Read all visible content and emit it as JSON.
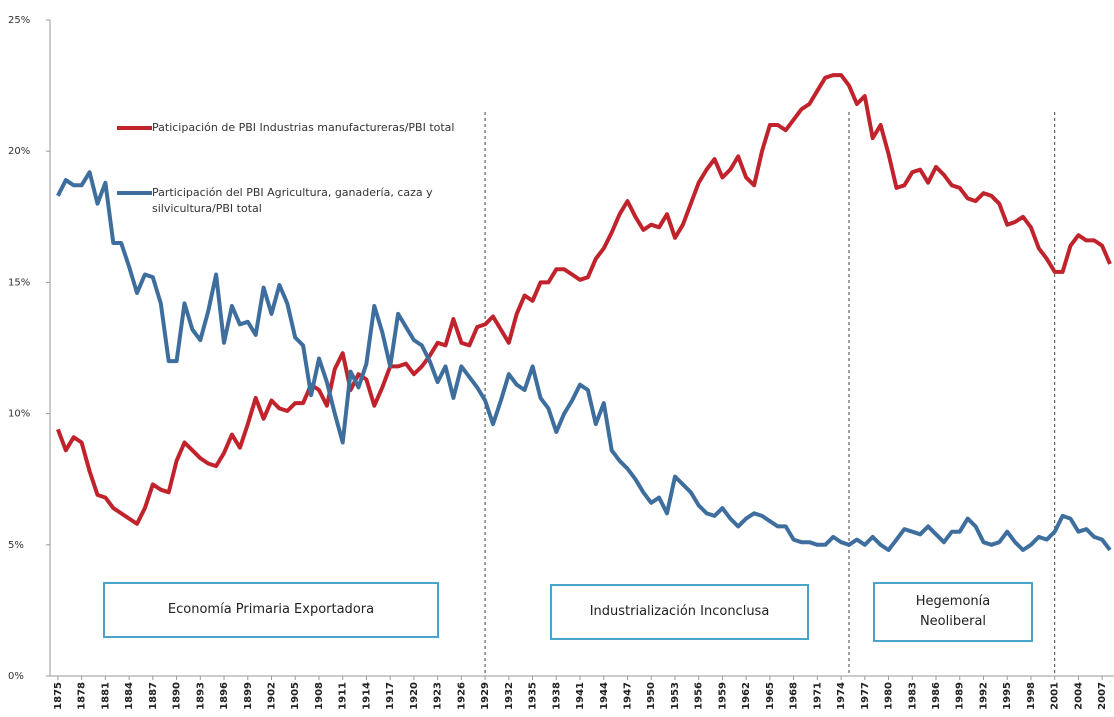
{
  "chart_data": {
    "type": "line",
    "annotations": [
      "Economía Primaria Exportadora",
      "Industrialización Inconclusa",
      "Hegemonía Neoliberal"
    ],
    "vlines": [
      1929,
      1975,
      2001
    ],
    "xlim": [
      1874,
      2008.5
    ],
    "ylim": [
      0,
      25
    ],
    "yticks": [
      {
        "value": 0,
        "label": "0%"
      },
      {
        "value": 5,
        "label": "5%"
      },
      {
        "value": 10,
        "label": "10%"
      },
      {
        "value": 15,
        "label": "15%"
      },
      {
        "value": 20,
        "label": "20%"
      },
      {
        "value": 25,
        "label": "25%"
      }
    ],
    "xticks": [
      1875,
      1878,
      1881,
      1884,
      1887,
      1890,
      1893,
      1896,
      1899,
      1902,
      1905,
      1908,
      1911,
      1914,
      1917,
      1920,
      1923,
      1926,
      1929,
      1932,
      1935,
      1938,
      1941,
      1944,
      1947,
      1950,
      1953,
      1956,
      1959,
      1962,
      1965,
      1968,
      1971,
      1974,
      1977,
      1980,
      1983,
      1986,
      1989,
      1992,
      1995,
      1998,
      2001,
      2004,
      2007
    ],
    "x": [
      1875,
      1876,
      1877,
      1878,
      1879,
      1880,
      1881,
      1882,
      1883,
      1884,
      1885,
      1886,
      1887,
      1888,
      1889,
      1890,
      1891,
      1892,
      1893,
      1894,
      1895,
      1896,
      1897,
      1898,
      1899,
      1900,
      1901,
      1902,
      1903,
      1904,
      1905,
      1906,
      1907,
      1908,
      1909,
      1910,
      1911,
      1912,
      1913,
      1914,
      1915,
      1916,
      1917,
      1918,
      1919,
      1920,
      1921,
      1922,
      1923,
      1924,
      1925,
      1926,
      1927,
      1928,
      1929,
      1930,
      1931,
      1932,
      1933,
      1934,
      1935,
      1936,
      1937,
      1938,
      1939,
      1940,
      1941,
      1942,
      1943,
      1944,
      1945,
      1946,
      1947,
      1948,
      1949,
      1950,
      1951,
      1952,
      1953,
      1954,
      1955,
      1956,
      1957,
      1958,
      1959,
      1960,
      1961,
      1962,
      1963,
      1964,
      1965,
      1966,
      1967,
      1968,
      1969,
      1970,
      1971,
      1972,
      1973,
      1974,
      1975,
      1976,
      1977,
      1978,
      1979,
      1980,
      1981,
      1982,
      1983,
      1984,
      1985,
      1986,
      1987,
      1988,
      1989,
      1990,
      1991,
      1992,
      1993,
      1994,
      1995,
      1996,
      1997,
      1998,
      1999,
      2000,
      2001,
      2002,
      2003,
      2004,
      2005,
      2006,
      2007,
      2008
    ],
    "series": [
      {
        "name": "Paticipación de PBI Industrias manufactureras/PBI total",
        "color": "#c0232b",
        "values": [
          9.4,
          8.6,
          9.1,
          8.9,
          7.8,
          6.9,
          6.8,
          6.4,
          6.2,
          6.0,
          5.8,
          6.4,
          7.3,
          7.1,
          7.0,
          8.2,
          8.9,
          8.6,
          8.3,
          8.1,
          8.0,
          8.5,
          9.2,
          8.7,
          9.6,
          10.6,
          9.8,
          10.5,
          10.2,
          10.1,
          10.4,
          10.4,
          11.1,
          10.9,
          10.3,
          11.7,
          12.3,
          10.9,
          11.5,
          11.3,
          10.3,
          11.0,
          11.8,
          11.8,
          11.9,
          11.5,
          11.8,
          12.2,
          12.7,
          12.6,
          13.6,
          12.7,
          12.6,
          13.3,
          13.4,
          13.7,
          13.2,
          12.7,
          13.8,
          14.5,
          14.3,
          15.0,
          15.0,
          15.5,
          15.5,
          15.3,
          15.1,
          15.2,
          15.9,
          16.3,
          16.9,
          17.6,
          18.1,
          17.5,
          17.0,
          17.2,
          17.1,
          17.6,
          16.7,
          17.2,
          18.0,
          18.8,
          19.3,
          19.7,
          19.0,
          19.3,
          19.8,
          19.0,
          18.7,
          20.0,
          21.0,
          21.0,
          20.8,
          21.2,
          21.6,
          21.8,
          22.3,
          22.8,
          22.9,
          22.9,
          22.5,
          21.8,
          22.1,
          20.5,
          21.0,
          19.9,
          18.6,
          18.7,
          19.2,
          19.3,
          18.8,
          19.4,
          19.1,
          18.7,
          18.6,
          18.2,
          18.1,
          18.4,
          18.3,
          18.0,
          17.2,
          17.3,
          17.5,
          17.1,
          16.3,
          15.9,
          15.4,
          15.4,
          16.4,
          16.8,
          16.6,
          16.6,
          16.4,
          15.7
        ]
      },
      {
        "name": "Participación del PBI Agricultura, ganadería, caza y silvicultura/PBI total",
        "color": "#3e6e9e",
        "values": [
          18.3,
          18.9,
          18.7,
          18.7,
          19.2,
          18.0,
          18.8,
          16.5,
          16.5,
          15.6,
          14.6,
          15.3,
          15.2,
          14.2,
          12.0,
          12.0,
          14.2,
          13.2,
          12.8,
          13.9,
          15.3,
          12.7,
          14.1,
          13.4,
          13.5,
          13.0,
          14.8,
          13.8,
          14.9,
          14.2,
          12.9,
          12.6,
          10.7,
          12.1,
          11.2,
          10.0,
          8.9,
          11.6,
          11.0,
          11.9,
          14.1,
          13.1,
          11.8,
          13.8,
          13.3,
          12.8,
          12.6,
          12.0,
          11.2,
          11.8,
          10.6,
          11.8,
          11.4,
          11.0,
          10.5,
          9.6,
          10.5,
          11.5,
          11.1,
          10.9,
          11.8,
          10.6,
          10.2,
          9.3,
          10.0,
          10.5,
          11.1,
          10.9,
          9.6,
          10.4,
          8.6,
          8.2,
          7.9,
          7.5,
          7.0,
          6.6,
          6.8,
          6.2,
          7.6,
          7.3,
          7.0,
          6.5,
          6.2,
          6.1,
          6.4,
          6.0,
          5.7,
          6.0,
          6.2,
          6.1,
          5.9,
          5.7,
          5.7,
          5.2,
          5.1,
          5.1,
          5.0,
          5.0,
          5.3,
          5.1,
          5.0,
          5.2,
          5.0,
          5.3,
          5.0,
          4.8,
          5.2,
          5.6,
          5.5,
          5.4,
          5.7,
          5.4,
          5.1,
          5.5,
          5.5,
          6.0,
          5.7,
          5.1,
          5.0,
          5.1,
          5.5,
          5.1,
          4.8,
          5.0,
          5.3,
          5.2,
          5.5,
          6.1,
          6.0,
          5.5,
          5.6,
          5.3,
          5.2,
          4.8
        ]
      }
    ]
  }
}
